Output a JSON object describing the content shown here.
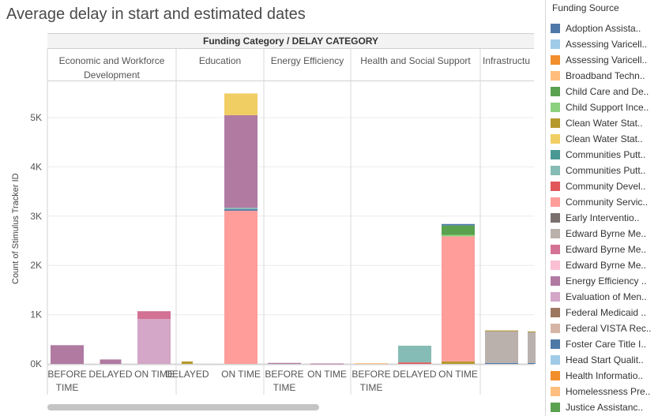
{
  "title": "Average delay in start and estimated dates",
  "header": "Funding Category  /  DELAY CATEGORY",
  "chart_data": {
    "type": "bar",
    "stacked": true,
    "title": "Average delay in start and estimated dates",
    "ylabel": "Count of Stimulus Tracker ID",
    "ylim": [
      0,
      5600
    ],
    "yticks": [
      0,
      1000,
      2000,
      3000,
      4000,
      5000
    ],
    "ytick_labels": [
      "0K",
      "1K",
      "2K",
      "3K",
      "4K",
      "5K"
    ],
    "gridlines": true,
    "legend_position": "right",
    "legend_title": "Funding Source",
    "groups": [
      {
        "name": "Economic and Workforce Development",
        "bars": [
          {
            "label": "BEFORE TIME",
            "segments": [
              {
                "source": "Energy Efficiency ..",
                "value": 380
              }
            ]
          },
          {
            "label": "DELAYED",
            "segments": [
              {
                "source": "Energy Efficiency ..",
                "value": 90
              }
            ]
          },
          {
            "label": "ON TIME",
            "segments": [
              {
                "source": "Evaluation of Men..",
                "value": 910
              },
              {
                "source": "Edward Byrne Me..",
                "value": 160
              }
            ]
          }
        ]
      },
      {
        "name": "Education",
        "bars": [
          {
            "label": "DELAYED",
            "segments": [
              {
                "source": "Clean Water Stat..",
                "value": 50
              }
            ]
          },
          {
            "label": "ON TIME",
            "segments": [
              {
                "source": "Community Servic..",
                "value": 3110
              },
              {
                "source": "Foster Care Title I..",
                "value": 30
              },
              {
                "source": "Communities Putt..",
                "value": 30
              },
              {
                "source": "Energy Efficiency ..",
                "value": 1880
              },
              {
                "source": "Clean Water Stat..",
                "value": 440
              }
            ]
          }
        ]
      },
      {
        "name": "Energy Efficiency",
        "bars": [
          {
            "label": "BEFORE TIME",
            "segments": [
              {
                "source": "Energy Efficiency ..",
                "value": 20
              }
            ]
          },
          {
            "label": "ON TIME",
            "segments": [
              {
                "source": "Energy Efficiency ..",
                "value": 8
              }
            ]
          }
        ]
      },
      {
        "name": "Health and Social Support",
        "bars": [
          {
            "label": "BEFORE TIME",
            "segments": [
              {
                "source": "Homelessness Pre..",
                "value": 15
              }
            ]
          },
          {
            "label": "DELAYED",
            "segments": [
              {
                "source": "Community Devel..",
                "value": 30
              },
              {
                "source": "Communities Putt..",
                "value": 340
              }
            ]
          },
          {
            "label": "ON TIME",
            "segments": [
              {
                "source": "Clean Water Stat..",
                "value": 50
              },
              {
                "source": "Community Servic..",
                "value": 2540
              },
              {
                "source": "Child Support Ince..",
                "value": 30
              },
              {
                "source": "Justice Assistanc..",
                "value": 190
              },
              {
                "source": "Foster Care Title I..",
                "value": 30
              }
            ]
          }
        ]
      },
      {
        "name": "Infrastructu",
        "bars": [
          {
            "label": "",
            "segments": [
              {
                "source": "Foster Care Title I..",
                "value": 20
              },
              {
                "source": "Edward Byrne Me..",
                "value": 650
              },
              {
                "source": "Clean Water Stat..",
                "value": 10
              }
            ]
          },
          {
            "label": "",
            "segments": [
              {
                "source": "Foster Care Title I..",
                "value": 20
              },
              {
                "source": "Edward Byrne Me..",
                "value": 630
              },
              {
                "source": "Clean Water Stat..",
                "value": 10
              }
            ]
          }
        ]
      }
    ],
    "legend": [
      {
        "name": "Adoption Assista..",
        "color": "#4e79a7"
      },
      {
        "name": "Assessing Varicell..",
        "color": "#a0cbe8"
      },
      {
        "name": "Assessing Varicell..",
        "color": "#f28e2b"
      },
      {
        "name": "Broadband Techn..",
        "color": "#ffbe7d"
      },
      {
        "name": "Child Care and De..",
        "color": "#59a14f"
      },
      {
        "name": "Child Support Ince..",
        "color": "#8cd17d"
      },
      {
        "name": "Clean Water Stat..",
        "color": "#b6992d"
      },
      {
        "name": "Clean Water Stat..",
        "color": "#f1ce63"
      },
      {
        "name": "Communities Putt..",
        "color": "#499894"
      },
      {
        "name": "Communities Putt..",
        "color": "#86bcb6"
      },
      {
        "name": "Community Devel..",
        "color": "#e15759"
      },
      {
        "name": "Community Servic..",
        "color": "#ff9d9a"
      },
      {
        "name": "Early Interventio..",
        "color": "#79706e"
      },
      {
        "name": "Edward Byrne Me..",
        "color": "#bab0ac"
      },
      {
        "name": "Edward Byrne Me..",
        "color": "#d37295"
      },
      {
        "name": "Edward Byrne Me..",
        "color": "#fabfd2"
      },
      {
        "name": "Energy Efficiency ..",
        "color": "#b07aa1"
      },
      {
        "name": "Evaluation of Men..",
        "color": "#d4a6c8"
      },
      {
        "name": "Federal Medicaid ..",
        "color": "#9d7660"
      },
      {
        "name": "Federal VISTA Rec..",
        "color": "#d7b5a6"
      },
      {
        "name": "Foster Care Title I..",
        "color": "#4e79a7"
      },
      {
        "name": "Head Start Qualit..",
        "color": "#a0cbe8"
      },
      {
        "name": "Health Informatio..",
        "color": "#f28e2b"
      },
      {
        "name": "Homelessness Pre..",
        "color": "#ffbe7d"
      },
      {
        "name": "Justice Assistanc..",
        "color": "#59a14f"
      }
    ]
  }
}
